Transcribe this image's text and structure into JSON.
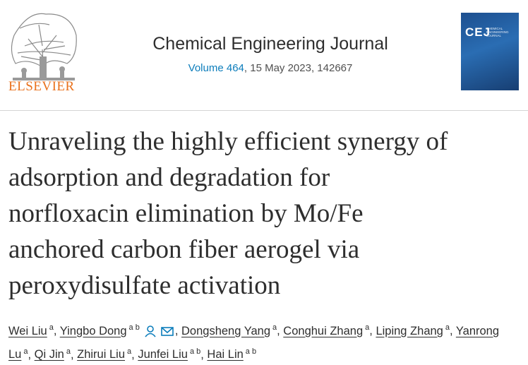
{
  "header": {
    "publisher": "ELSEVIER",
    "journal": "Chemical Engineering Journal",
    "volume": "Volume 464",
    "issue_info": ", 15 May 2023, 142667",
    "cover": {
      "title": "CEJ",
      "subtitle": "CHEMICAL ENGINEERING JOURNAL"
    }
  },
  "article": {
    "title_lines": [
      "Unraveling the highly efficient synergy of",
      "adsorption and degradation for",
      "norfloxacin elimination by Mo/Fe",
      "anchored carbon fiber aerogel via",
      "peroxydisulfate activation"
    ],
    "author_separator": ", ",
    "authors": [
      {
        "name": "Wei Liu",
        "affiliations": "a"
      },
      {
        "name": "Yingbo Dong",
        "affiliations": "a b"
      },
      {
        "name": "Dongsheng Yang",
        "affiliations": "a"
      },
      {
        "name": "Conghui Zhang",
        "affiliations": "a"
      },
      {
        "name": "Liping Zhang",
        "affiliations": "a"
      },
      {
        "name": "Yanrong Lu",
        "affiliations": "a"
      },
      {
        "name": "Qi Jin",
        "affiliations": "a"
      },
      {
        "name": "Zhirui Liu",
        "affiliations": "a"
      },
      {
        "name": "Junfei Liu",
        "affiliations": "a b"
      },
      {
        "name": "Hai Lin",
        "affiliations": "a b"
      }
    ]
  }
}
